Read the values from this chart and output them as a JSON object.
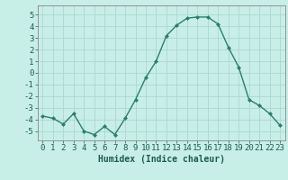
{
  "x": [
    0,
    1,
    2,
    3,
    4,
    5,
    6,
    7,
    8,
    9,
    10,
    11,
    12,
    13,
    14,
    15,
    16,
    17,
    18,
    19,
    20,
    21,
    22,
    23
  ],
  "y": [
    -3.7,
    -3.9,
    -4.4,
    -3.5,
    -5.0,
    -5.3,
    -4.6,
    -5.3,
    -3.9,
    -2.3,
    -0.4,
    1.0,
    3.2,
    4.1,
    4.7,
    4.8,
    4.8,
    4.2,
    2.2,
    0.5,
    -2.3,
    -2.8,
    -3.5,
    -4.5
  ],
  "line_color": "#2d7d6e",
  "marker": "D",
  "marker_size": 2.0,
  "bg_color": "#c8eee8",
  "grid_color": "#aad8d0",
  "xlabel": "Humidex (Indice chaleur)",
  "ylim": [
    -5.8,
    5.8
  ],
  "xlim": [
    -0.5,
    23.5
  ],
  "yticks": [
    -5,
    -4,
    -3,
    -2,
    -1,
    0,
    1,
    2,
    3,
    4,
    5
  ],
  "xticks": [
    0,
    1,
    2,
    3,
    4,
    5,
    6,
    7,
    8,
    9,
    10,
    11,
    12,
    13,
    14,
    15,
    16,
    17,
    18,
    19,
    20,
    21,
    22,
    23
  ],
  "xlabel_fontsize": 7,
  "tick_fontsize": 6.5,
  "tick_color": "#1a5c50",
  "axis_color": "#888888",
  "line_width": 1.0
}
